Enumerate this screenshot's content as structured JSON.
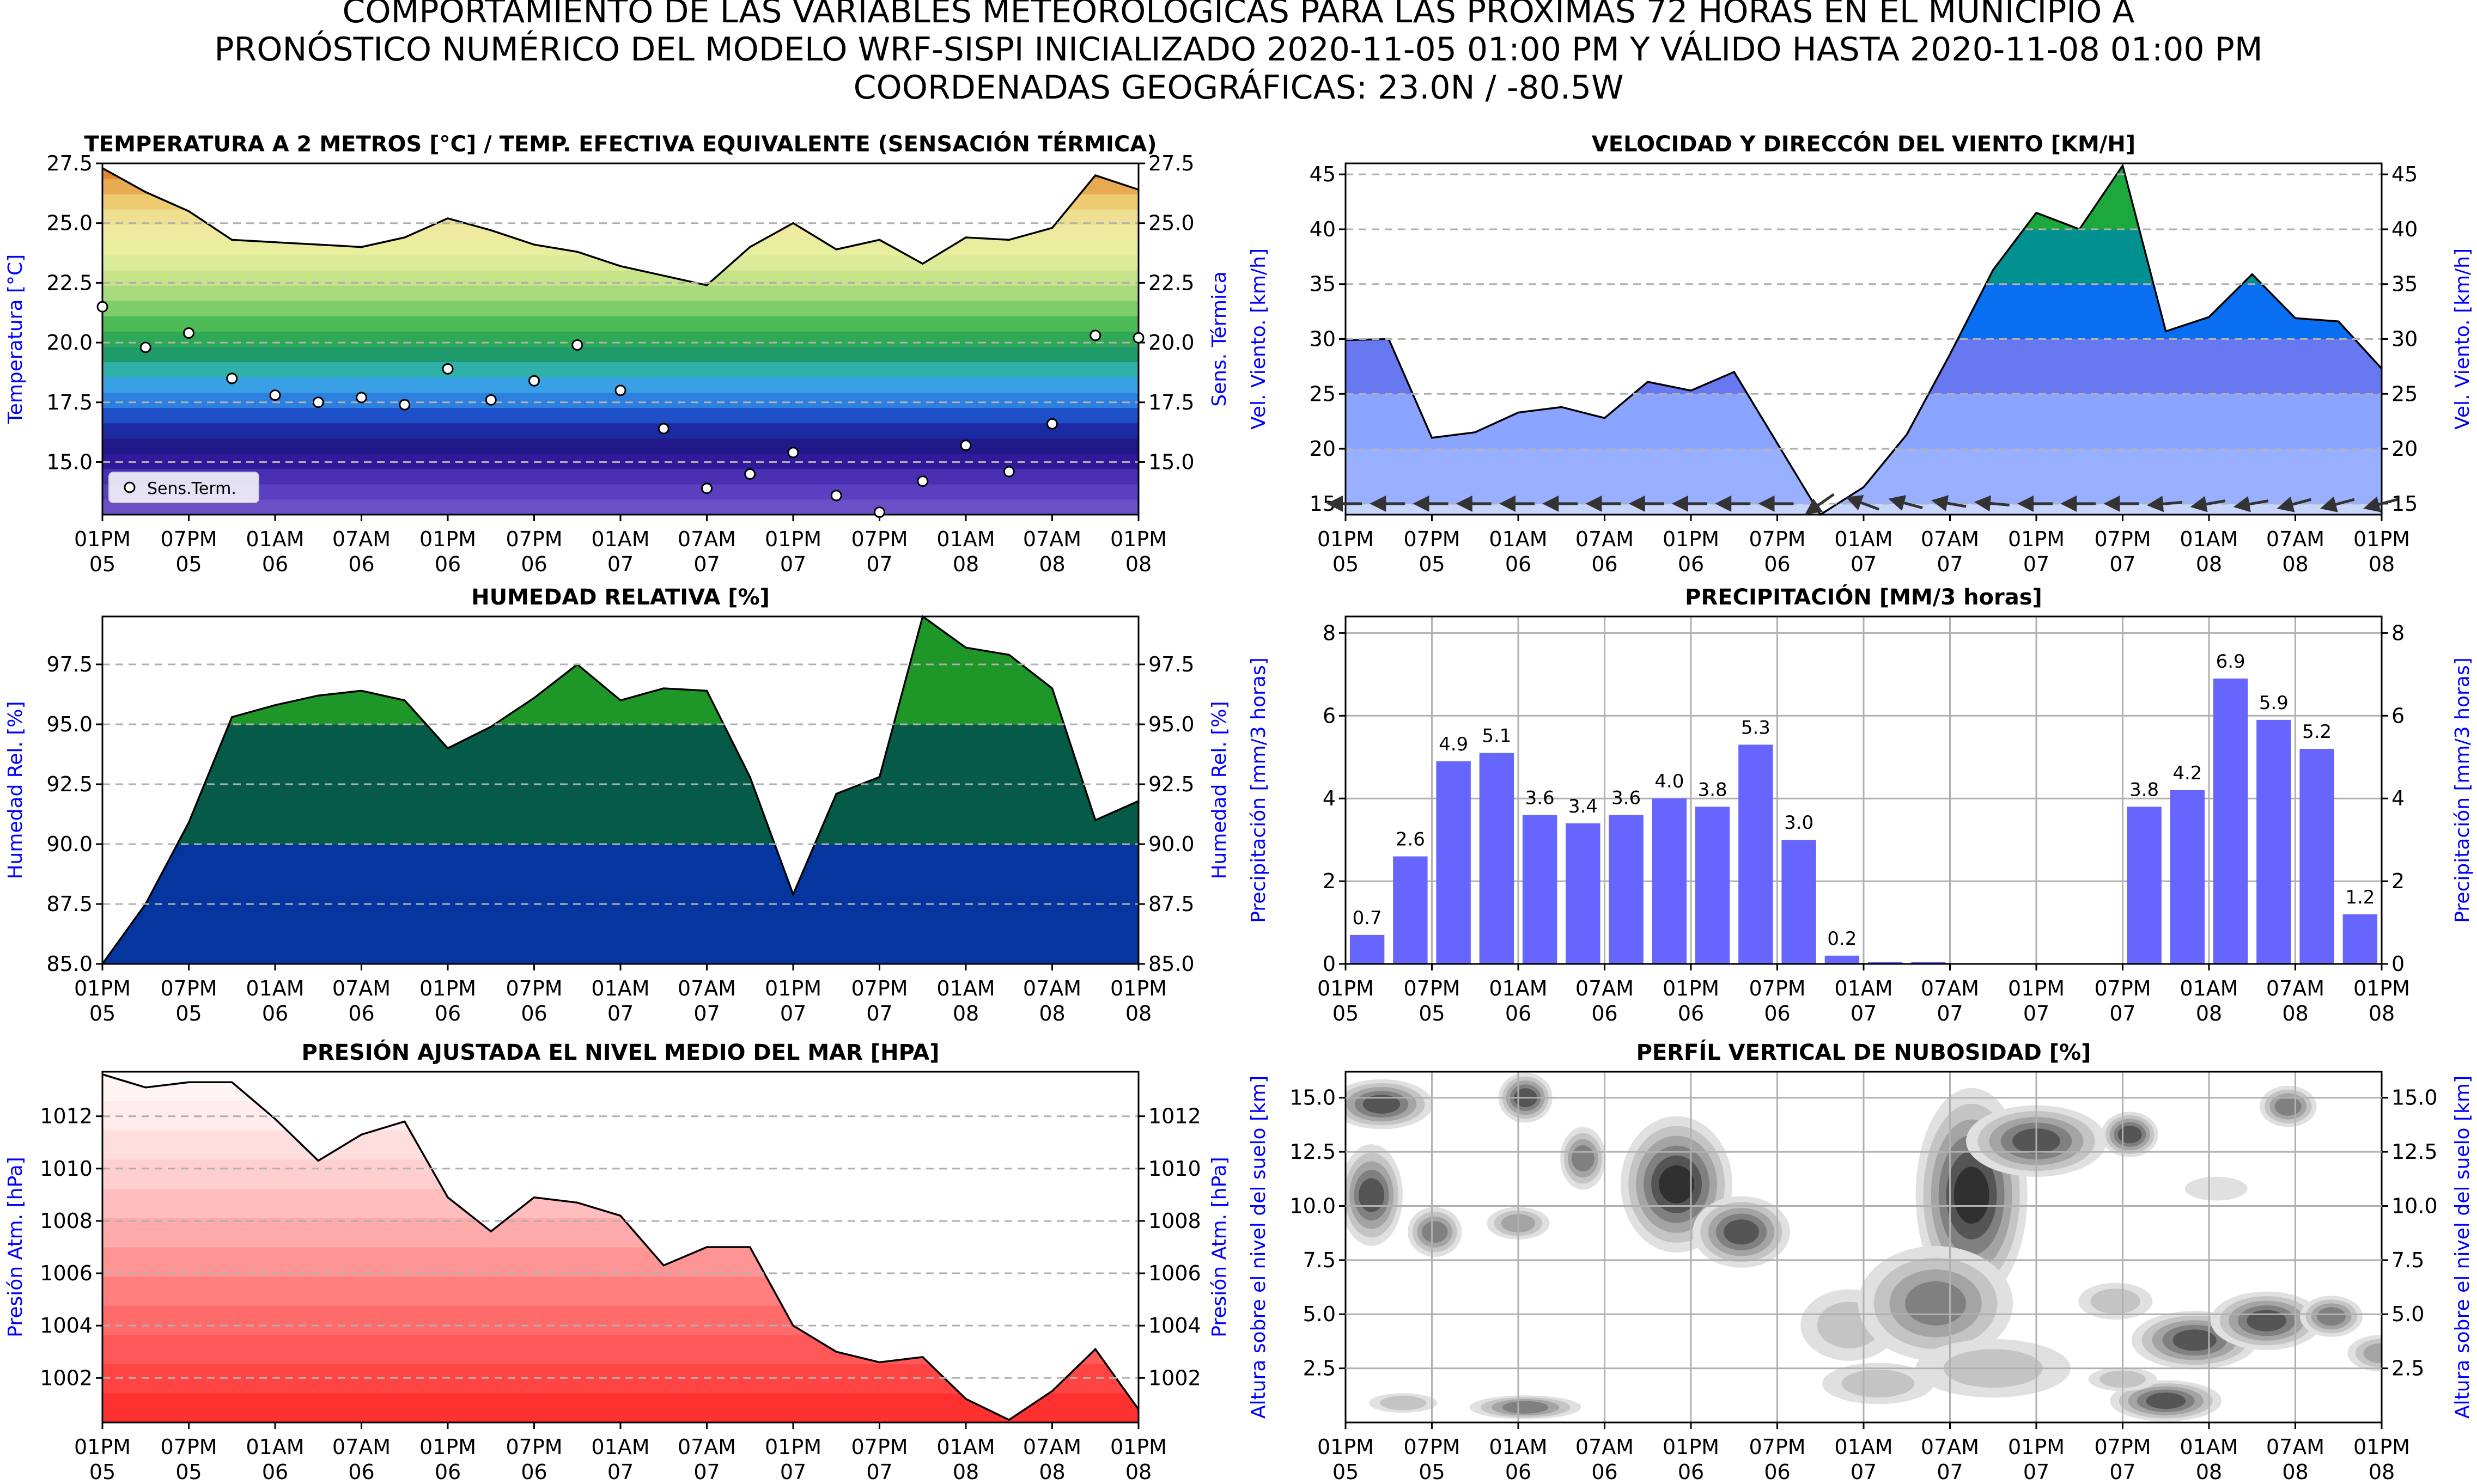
{
  "header": {
    "line1": "COMPORTAMIENTO DE LAS VARIABLES METEOROLÓGICAS PARA LAS PRÓXIMAS 72 HORAS EN EL MUNICIPIO A",
    "line2": "PRONÓSTICO NUMÉRICO DEL MODELO WRF-SISPI INICIALIZADO 2020-11-05 01:00 PM Y VÁLIDO HASTA 2020-11-08 01:00 PM",
    "line3": "COORDENADAS GEOGRÁFICAS: 23.0N / -80.5W"
  },
  "colors": {
    "axis_label": "#0000ff",
    "wind_line": "#000000",
    "precip_bar": "#6666ff",
    "pressure_base": "#ff3333"
  },
  "time_ticks": [
    [
      "01PM",
      "05"
    ],
    [
      "07PM",
      "05"
    ],
    [
      "01AM",
      "06"
    ],
    [
      "07AM",
      "06"
    ],
    [
      "01PM",
      "06"
    ],
    [
      "07PM",
      "06"
    ],
    [
      "01AM",
      "07"
    ],
    [
      "07AM",
      "07"
    ],
    [
      "01PM",
      "07"
    ],
    [
      "07PM",
      "07"
    ],
    [
      "01AM",
      "08"
    ],
    [
      "07AM",
      "08"
    ],
    [
      "01PM",
      "08"
    ]
  ],
  "chart_data": [
    {
      "id": "temp",
      "type": "area",
      "title": "TEMPERATURA A 2 METROS [°C] / TEMP. EFECTIVA EQUIVALENTE (SENSACIÓN TÉRMICA)",
      "ylabel": "Temperatura [°C]",
      "ylabel_right": "Sens. Térmica",
      "ylim": [
        12.8,
        27.5
      ],
      "yticks": [
        "15.0",
        "17.5",
        "20.0",
        "22.5",
        "25.0",
        "27.5"
      ],
      "x_hours": [
        0,
        3,
        6,
        9,
        12,
        15,
        18,
        21,
        24,
        27,
        30,
        33,
        36,
        39,
        42,
        45,
        48,
        51,
        54,
        57,
        60,
        63,
        66,
        69,
        72
      ],
      "temperature": [
        27.3,
        26.3,
        25.5,
        24.3,
        24.2,
        24.1,
        24.0,
        24.4,
        25.2,
        24.7,
        24.1,
        23.8,
        23.2,
        22.8,
        22.4,
        24.0,
        25.0,
        23.9,
        24.3,
        23.3,
        24.4,
        24.3,
        24.8,
        27.0,
        26.4
      ],
      "legend": "Sens.Term.",
      "sens_termica": [
        21.5,
        19.8,
        20.4,
        18.5,
        17.8,
        17.5,
        17.7,
        17.4,
        18.9,
        17.6,
        18.4,
        19.9,
        18.0,
        16.4,
        13.9,
        14.5,
        15.4,
        13.6,
        12.9,
        14.2,
        15.7,
        14.6,
        16.6,
        20.3,
        20.2
      ]
    },
    {
      "id": "wind",
      "type": "area",
      "title": "VELOCIDAD Y DIRECCÓN DEL VIENTO [KM/H]",
      "ylabel": "Vel. Viento. [km/h]",
      "ylabel_right": "Vel. Viento. [km/h]",
      "ylim": [
        14,
        46
      ],
      "yticks": [
        "15",
        "20",
        "25",
        "30",
        "35",
        "40",
        "45"
      ],
      "x_hours": [
        0,
        3,
        6,
        9,
        12,
        15,
        18,
        21,
        24,
        27,
        30,
        33,
        36,
        39,
        42,
        45,
        48,
        51,
        54,
        57,
        60,
        63,
        66,
        69,
        72
      ],
      "speed": [
        29.9,
        30.0,
        21.0,
        21.5,
        23.3,
        23.8,
        22.8,
        26.1,
        25.3,
        27.0,
        20.5,
        14.0,
        16.5,
        21.3,
        28.6,
        36.3,
        41.5,
        40.0,
        45.8,
        30.7,
        32.0,
        35.9,
        31.9,
        31.6,
        27.3
      ],
      "arrow_dir_deg": [
        180,
        180,
        180,
        180,
        180,
        180,
        180,
        180,
        180,
        180,
        180,
        215,
        160,
        165,
        170,
        175,
        180,
        180,
        180,
        185,
        190,
        190,
        195,
        195,
        195
      ]
    },
    {
      "id": "rh",
      "type": "area",
      "title": "HUMEDAD RELATIVA [%]",
      "ylabel": "Humedad Rel. [%]",
      "ylabel_right": "Humedad Rel. [%]",
      "ylim": [
        85.0,
        99.5
      ],
      "yticks": [
        "85.0",
        "87.5",
        "90.0",
        "92.5",
        "95.0",
        "97.5"
      ],
      "x_hours": [
        0,
        3,
        6,
        9,
        12,
        15,
        18,
        21,
        24,
        27,
        30,
        33,
        36,
        39,
        42,
        45,
        48,
        51,
        54,
        57,
        60,
        63,
        66,
        69,
        72
      ],
      "humidity": [
        85.0,
        87.5,
        90.9,
        95.3,
        95.8,
        96.2,
        96.4,
        96.0,
        94.0,
        94.9,
        96.1,
        97.5,
        96.0,
        96.5,
        96.4,
        92.8,
        87.9,
        92.1,
        92.8,
        99.5,
        98.2,
        97.9,
        96.5,
        91.0,
        91.8
      ]
    },
    {
      "id": "precip",
      "type": "bar",
      "title": "PRECIPITACIÓN [MM/3 horas]",
      "ylabel": "Precipitación [mm/3 horas]",
      "ylabel_right": "Precipitación [mm/3 horas]",
      "ylim": [
        0,
        8.4
      ],
      "yticks": [
        "0",
        "2",
        "4",
        "6",
        "8"
      ],
      "x_hours": [
        3,
        6,
        9,
        12,
        15,
        18,
        21,
        24,
        27,
        30,
        33,
        36,
        39,
        42,
        45,
        48,
        51,
        54,
        57,
        60,
        63,
        66,
        69,
        72
      ],
      "values": [
        0.7,
        2.6,
        4.9,
        5.1,
        3.6,
        3.4,
        3.6,
        4.0,
        3.8,
        5.3,
        3.0,
        0.2,
        0.05,
        0.05,
        0,
        0,
        0,
        0,
        3.8,
        4.2,
        6.9,
        5.9,
        5.2,
        1.2
      ],
      "data_labels": [
        "0.7",
        "2.6",
        "4.9",
        "5.1",
        "3.6",
        "3.4",
        "3.6",
        "4.0",
        "3.8",
        "5.3",
        "3.0",
        "0.2",
        "",
        "",
        "",
        "",
        "",
        "",
        "3.8",
        "4.2",
        "6.9",
        "5.9",
        "5.2",
        "1.2"
      ]
    },
    {
      "id": "pressure",
      "type": "area",
      "title": "PRESIÓN AJUSTADA EL NIVEL MEDIO DEL MAR [HPA]",
      "ylabel": "Presión Atm. [hPa]",
      "ylabel_right": "Presión Atm. [hPa]",
      "ylim": [
        1000.3,
        1013.7
      ],
      "yticks": [
        "1002",
        "1004",
        "1006",
        "1008",
        "1010",
        "1012"
      ],
      "x_hours": [
        0,
        3,
        6,
        9,
        12,
        15,
        18,
        21,
        24,
        27,
        30,
        33,
        36,
        39,
        42,
        45,
        48,
        51,
        54,
        57,
        60,
        63,
        66,
        69,
        72
      ],
      "pressure": [
        1013.6,
        1013.1,
        1013.3,
        1013.3,
        1011.9,
        1010.3,
        1011.3,
        1011.8,
        1008.9,
        1007.6,
        1008.9,
        1008.7,
        1008.2,
        1006.3,
        1007.0,
        1007.0,
        1004.0,
        1003.0,
        1002.6,
        1002.8,
        1001.2,
        1000.4,
        1001.5,
        1003.1,
        1000.8
      ]
    },
    {
      "id": "cloud",
      "type": "heatmap",
      "title": "PERFÍL VERTICAL DE NUBOSIDAD [%]",
      "ylabel": "Altura sobre el nivel del suelo [km]",
      "ylabel_right": "Altura sobre el nivel del suelo [km]",
      "ylim": [
        0,
        16.2
      ],
      "yticks": [
        "2.5",
        "5.0",
        "7.5",
        "10.0",
        "12.5",
        "15.0"
      ],
      "blobs": [
        {
          "t": 2.5,
          "h": 14.7,
          "rt": 3.2,
          "rh": 1.0,
          "level": 5
        },
        {
          "t": 1.8,
          "h": 10.5,
          "rt": 1.8,
          "rh": 2.2,
          "level": 5
        },
        {
          "t": 6.2,
          "h": 8.8,
          "rt": 1.5,
          "rh": 1.0,
          "level": 4
        },
        {
          "t": 12.5,
          "h": 15.0,
          "rt": 1.5,
          "rh": 1.0,
          "level": 5
        },
        {
          "t": 12.0,
          "h": 9.2,
          "rt": 1.8,
          "rh": 0.6,
          "level": 3
        },
        {
          "t": 16.5,
          "h": 12.2,
          "rt": 1.2,
          "rh": 1.3,
          "level": 4
        },
        {
          "t": 12.5,
          "h": 0.7,
          "rt": 3.5,
          "rh": 0.4,
          "level": 4
        },
        {
          "t": 4.0,
          "h": 0.9,
          "rt": 2.0,
          "rh": 0.3,
          "level": 2
        },
        {
          "t": 23.0,
          "h": 11.0,
          "rt": 3.5,
          "rh": 3.0,
          "level": 6
        },
        {
          "t": 27.5,
          "h": 8.8,
          "rt": 3.0,
          "rh": 1.5,
          "level": 5
        },
        {
          "t": 35.0,
          "h": 4.5,
          "rt": 3.0,
          "rh": 1.5,
          "level": 2
        },
        {
          "t": 37.0,
          "h": 1.8,
          "rt": 3.5,
          "rh": 0.8,
          "level": 2
        },
        {
          "t": 43.5,
          "h": 10.5,
          "rt": 3.5,
          "rh": 4.8,
          "level": 6
        },
        {
          "t": 48.0,
          "h": 13.0,
          "rt": 4.5,
          "rh": 1.5,
          "level": 5
        },
        {
          "t": 41.0,
          "h": 5.5,
          "rt": 5.0,
          "rh": 2.5,
          "level": 4
        },
        {
          "t": 45.0,
          "h": 2.5,
          "rt": 5.0,
          "rh": 1.2,
          "level": 2
        },
        {
          "t": 53.5,
          "h": 5.6,
          "rt": 2.2,
          "rh": 0.7,
          "level": 2
        },
        {
          "t": 54.5,
          "h": 13.3,
          "rt": 1.6,
          "rh": 0.9,
          "level": 5
        },
        {
          "t": 59.0,
          "h": 3.8,
          "rt": 4.0,
          "rh": 1.2,
          "level": 5
        },
        {
          "t": 64.0,
          "h": 4.7,
          "rt": 3.5,
          "rh": 1.2,
          "level": 5
        },
        {
          "t": 68.5,
          "h": 4.9,
          "rt": 1.8,
          "rh": 0.8,
          "level": 4
        },
        {
          "t": 57.0,
          "h": 1.0,
          "rt": 3.5,
          "rh": 0.8,
          "level": 5
        },
        {
          "t": 54.0,
          "h": 2.0,
          "rt": 2.0,
          "rh": 0.4,
          "level": 2
        },
        {
          "t": 60.5,
          "h": 10.8,
          "rt": 1.8,
          "rh": 0.4,
          "level": 1
        },
        {
          "t": 65.5,
          "h": 14.6,
          "rt": 1.6,
          "rh": 0.8,
          "level": 4
        },
        {
          "t": 72.0,
          "h": 3.2,
          "rt": 2.0,
          "rh": 0.7,
          "level": 3
        }
      ]
    }
  ]
}
